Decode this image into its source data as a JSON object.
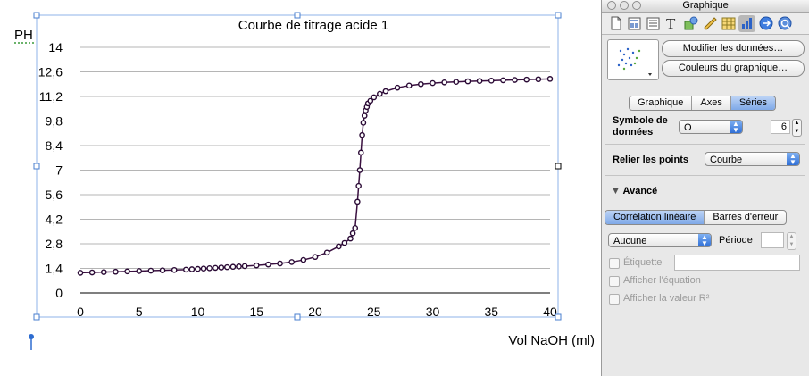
{
  "chart": {
    "title": "Courbe de titrage acide 1",
    "ylabel": "PH",
    "xlabel": "Vol NaOH (ml)"
  },
  "chart_data": {
    "type": "line",
    "title": "Courbe de titrage acide 1",
    "xlabel": "Vol NaOH (ml)",
    "ylabel": "PH",
    "xlim": [
      0,
      40
    ],
    "ylim": [
      0,
      14
    ],
    "x_ticks": [
      "0",
      "5",
      "10",
      "15",
      "20",
      "25",
      "30",
      "35",
      "40"
    ],
    "y_ticks": [
      "0",
      "1,4",
      "2,8",
      "4,2",
      "5,6",
      "7",
      "8,4",
      "9,8",
      "11,2",
      "12,6",
      "14"
    ],
    "grid": true,
    "marker": "circle",
    "series": [
      {
        "x": [
          0,
          1,
          2,
          3,
          4,
          5,
          6,
          7,
          8,
          9,
          9.5,
          10,
          10.5,
          11,
          11.5,
          12,
          12.5,
          13,
          13.5,
          14,
          15,
          16,
          17,
          18,
          19,
          20,
          21,
          22,
          22.5,
          23,
          23.2,
          23.4,
          23.6,
          23.7,
          23.8,
          23.9,
          24,
          24.1,
          24.2,
          24.3,
          24.4,
          24.5,
          24.7,
          25,
          25.5,
          26,
          27,
          28,
          29,
          30,
          31,
          32,
          33,
          34,
          35,
          36,
          37,
          38,
          39,
          40
        ],
        "y": [
          1.15,
          1.17,
          1.19,
          1.21,
          1.23,
          1.25,
          1.27,
          1.29,
          1.31,
          1.33,
          1.35,
          1.37,
          1.39,
          1.41,
          1.43,
          1.45,
          1.47,
          1.49,
          1.51,
          1.53,
          1.57,
          1.62,
          1.68,
          1.76,
          1.88,
          2.05,
          2.3,
          2.65,
          2.85,
          3.1,
          3.4,
          3.7,
          5.2,
          6.1,
          7.0,
          8.0,
          9.0,
          9.7,
          10.1,
          10.4,
          10.6,
          10.8,
          10.95,
          11.15,
          11.35,
          11.5,
          11.7,
          11.82,
          11.9,
          11.96,
          12.0,
          12.03,
          12.06,
          12.08,
          12.1,
          12.12,
          12.14,
          12.16,
          12.18,
          12.2
        ]
      }
    ]
  },
  "inspector": {
    "window_title": "Graphique",
    "tools": [
      "document-icon",
      "layout-icon",
      "wrap-icon",
      "text-icon",
      "graphic-icon",
      "metrics-icon",
      "table-icon",
      "chart-icon",
      "link-icon",
      "quicktime-icon"
    ],
    "modify_data": "Modifier les données…",
    "chart_colors": "Couleurs du graphique…",
    "tabs": [
      "Graphique",
      "Axes",
      "Séries"
    ],
    "symbol_label": "Symbole de données",
    "symbol_value": "O",
    "symbol_size": "6",
    "connect_label": "Relier les points",
    "connect_value": "Courbe",
    "advanced_label": "Avancé",
    "subtabs": [
      "Corrélation linéaire",
      "Barres d'erreur"
    ],
    "trend_value": "Aucune",
    "period_label": "Période",
    "label_label": "Étiquette",
    "show_equation": "Afficher l'équation",
    "show_r2": "Afficher la valeur R²",
    "accent": "#5b8de3"
  }
}
